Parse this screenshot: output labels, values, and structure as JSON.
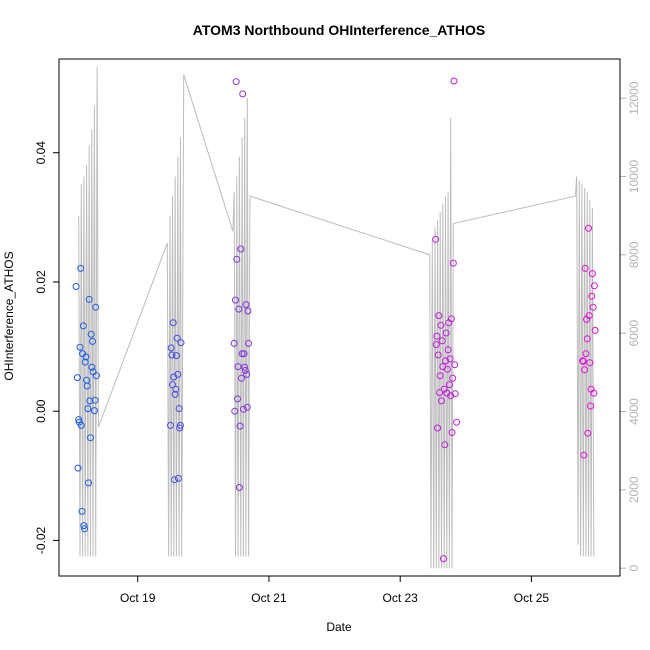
{
  "chart_data": {
    "type": "scatter",
    "title": "ATOM3 Northbound OHInterference_ATHOS",
    "xlabel": "Date",
    "ylabel": "OHInterference_ATHOS",
    "x_ticks": [
      "Oct 19",
      "Oct 21",
      "Oct 23",
      "Oct 25"
    ],
    "y_ticks": [
      "-0.02",
      "0.00",
      "0.02",
      "0.04"
    ],
    "y_tick_values": [
      -0.02,
      0.0,
      0.02,
      0.04
    ],
    "y2_ticks": [
      "0",
      "2000",
      "4000",
      "6000",
      "8000",
      "10000",
      "12000"
    ],
    "y2_tick_values": [
      0,
      2000,
      4000,
      6000,
      8000,
      10000,
      12000
    ],
    "xlim_days": [
      17.8,
      26.35
    ],
    "ylim": [
      -0.0255,
      0.0545
    ],
    "y2lim": [
      -200,
      13000
    ],
    "color_scale": {
      "start": "#1f5ce6",
      "end": "#e60fd9"
    },
    "secondary_series_color": "#bdbdbd",
    "series": [
      {
        "color_position": 0.0,
        "points": [
          {
            "x": 18.06,
            "y": 0.0193
          },
          {
            "x": 18.08,
            "y": 0.0052
          },
          {
            "x": 18.09,
            "y": -0.0088
          },
          {
            "x": 18.1,
            "y": -0.0013
          },
          {
            "x": 18.11,
            "y": -0.0017
          },
          {
            "x": 18.12,
            "y": 0.0099
          },
          {
            "x": 18.13,
            "y": 0.0221
          },
          {
            "x": 18.14,
            "y": -0.0022
          },
          {
            "x": 18.15,
            "y": -0.0155
          },
          {
            "x": 18.16,
            "y": 0.0089
          },
          {
            "x": 18.17,
            "y": 0.0132
          },
          {
            "x": 18.18,
            "y": -0.0177
          },
          {
            "x": 18.19,
            "y": -0.0182
          },
          {
            "x": 18.2,
            "y": 0.0076
          },
          {
            "x": 18.21,
            "y": 0.0084
          },
          {
            "x": 18.22,
            "y": 0.0048
          },
          {
            "x": 18.23,
            "y": 0.0039
          },
          {
            "x": 18.24,
            "y": 0.0004
          },
          {
            "x": 18.25,
            "y": -0.0111
          },
          {
            "x": 18.26,
            "y": 0.0173
          },
          {
            "x": 18.27,
            "y": 0.0016
          },
          {
            "x": 18.28,
            "y": -0.0041
          },
          {
            "x": 18.29,
            "y": 0.0119
          },
          {
            "x": 18.3,
            "y": 0.0068
          },
          {
            "x": 18.31,
            "y": 0.0108
          },
          {
            "x": 18.32,
            "y": 0.0061
          },
          {
            "x": 18.34,
            "y": 0.0001
          },
          {
            "x": 18.35,
            "y": 0.0017
          },
          {
            "x": 18.36,
            "y": 0.0161
          },
          {
            "x": 18.37,
            "y": 0.0055
          }
        ]
      },
      {
        "color_position": 0.2,
        "points": [
          {
            "x": 19.5,
            "y": -0.0022
          },
          {
            "x": 19.51,
            "y": 0.0098
          },
          {
            "x": 19.52,
            "y": 0.0087
          },
          {
            "x": 19.53,
            "y": 0.0041
          },
          {
            "x": 19.54,
            "y": 0.0137
          },
          {
            "x": 19.55,
            "y": 0.0053
          },
          {
            "x": 19.56,
            "y": -0.0106
          },
          {
            "x": 19.57,
            "y": 0.0026
          },
          {
            "x": 19.58,
            "y": 0.0034
          },
          {
            "x": 19.59,
            "y": 0.0086
          },
          {
            "x": 19.6,
            "y": 0.0113
          },
          {
            "x": 19.61,
            "y": 0.0057
          },
          {
            "x": 19.62,
            "y": -0.0104
          },
          {
            "x": 19.63,
            "y": 0.0004
          },
          {
            "x": 19.64,
            "y": -0.0026
          },
          {
            "x": 19.65,
            "y": -0.0022
          },
          {
            "x": 19.66,
            "y": 0.0106
          }
        ]
      },
      {
        "color_position": 0.5,
        "points": [
          {
            "x": 20.47,
            "y": 0.0105
          },
          {
            "x": 20.48,
            "y": 0.0
          },
          {
            "x": 20.49,
            "y": 0.0172
          },
          {
            "x": 20.5,
            "y": 0.051
          },
          {
            "x": 20.51,
            "y": 0.0235
          },
          {
            "x": 20.52,
            "y": 0.0019
          },
          {
            "x": 20.53,
            "y": 0.0069
          },
          {
            "x": 20.54,
            "y": 0.0158
          },
          {
            "x": 20.55,
            "y": -0.0118
          },
          {
            "x": 20.56,
            "y": -0.0023
          },
          {
            "x": 20.57,
            "y": 0.0251
          },
          {
            "x": 20.58,
            "y": 0.0051
          },
          {
            "x": 20.59,
            "y": 0.0089
          },
          {
            "x": 20.6,
            "y": 0.0491
          },
          {
            "x": 20.61,
            "y": 0.0003
          },
          {
            "x": 20.62,
            "y": 0.0089
          },
          {
            "x": 20.63,
            "y": 0.0068
          },
          {
            "x": 20.64,
            "y": 0.0063
          },
          {
            "x": 20.65,
            "y": 0.0165
          },
          {
            "x": 20.66,
            "y": 0.0057
          },
          {
            "x": 20.67,
            "y": 0.0006
          },
          {
            "x": 20.68,
            "y": 0.0155
          },
          {
            "x": 20.69,
            "y": 0.0105
          }
        ]
      },
      {
        "color_position": 0.82,
        "points": [
          {
            "x": 23.54,
            "y": 0.0266
          },
          {
            "x": 23.55,
            "y": 0.0103
          },
          {
            "x": 23.56,
            "y": 0.0116
          },
          {
            "x": 23.57,
            "y": -0.0026
          },
          {
            "x": 23.58,
            "y": 0.0087
          },
          {
            "x": 23.59,
            "y": 0.0148
          },
          {
            "x": 23.6,
            "y": 0.0029
          },
          {
            "x": 23.61,
            "y": 0.0055
          },
          {
            "x": 23.62,
            "y": 0.0133
          },
          {
            "x": 23.63,
            "y": 0.0016
          },
          {
            "x": 23.64,
            "y": 0.0109
          },
          {
            "x": 23.65,
            "y": 0.0069
          },
          {
            "x": 23.66,
            "y": -0.0228
          },
          {
            "x": 23.67,
            "y": 0.0034
          },
          {
            "x": 23.68,
            "y": -0.0052
          },
          {
            "x": 23.69,
            "y": 0.0078
          },
          {
            "x": 23.7,
            "y": 0.0121
          },
          {
            "x": 23.71,
            "y": 0.0028
          },
          {
            "x": 23.72,
            "y": 0.0065
          },
          {
            "x": 23.73,
            "y": 0.0095
          },
          {
            "x": 23.74,
            "y": 0.0137
          },
          {
            "x": 23.75,
            "y": 0.0041
          },
          {
            "x": 23.76,
            "y": 0.0081
          },
          {
            "x": 23.77,
            "y": 0.0024
          },
          {
            "x": 23.78,
            "y": 0.0143
          },
          {
            "x": 23.79,
            "y": -0.0033
          },
          {
            "x": 23.8,
            "y": 0.0051
          },
          {
            "x": 23.81,
            "y": 0.0229
          },
          {
            "x": 23.82,
            "y": 0.0511
          },
          {
            "x": 23.83,
            "y": 0.0072
          },
          {
            "x": 23.84,
            "y": 0.0027
          },
          {
            "x": 23.86,
            "y": -0.0017
          }
        ]
      },
      {
        "color_position": 1.0,
        "points": [
          {
            "x": 25.78,
            "y": 0.0078
          },
          {
            "x": 25.79,
            "y": 0.0077
          },
          {
            "x": 25.8,
            "y": -0.0068
          },
          {
            "x": 25.81,
            "y": 0.0064
          },
          {
            "x": 25.82,
            "y": 0.0221
          },
          {
            "x": 25.83,
            "y": 0.0089
          },
          {
            "x": 25.84,
            "y": 0.0142
          },
          {
            "x": 25.85,
            "y": 0.0112
          },
          {
            "x": 25.86,
            "y": -0.0034
          },
          {
            "x": 25.87,
            "y": 0.0283
          },
          {
            "x": 25.88,
            "y": 0.0148
          },
          {
            "x": 25.89,
            "y": 0.0075
          },
          {
            "x": 25.9,
            "y": 0.0008
          },
          {
            "x": 25.91,
            "y": 0.0034
          },
          {
            "x": 25.92,
            "y": 0.0178
          },
          {
            "x": 25.93,
            "y": 0.0213
          },
          {
            "x": 25.94,
            "y": 0.0161
          },
          {
            "x": 25.95,
            "y": 0.0028
          },
          {
            "x": 25.96,
            "y": 0.0194
          },
          {
            "x": 25.97,
            "y": 0.0125
          }
        ]
      }
    ],
    "secondary_series": {
      "axis": "right",
      "type": "line",
      "points": [
        {
          "x": 18.1,
          "y": 9000
        },
        {
          "x": 18.12,
          "y": 300
        },
        {
          "x": 18.14,
          "y": 9800
        },
        {
          "x": 18.16,
          "y": 300
        },
        {
          "x": 18.18,
          "y": 10000
        },
        {
          "x": 18.2,
          "y": 300
        },
        {
          "x": 18.22,
          "y": 10300
        },
        {
          "x": 18.24,
          "y": 300
        },
        {
          "x": 18.26,
          "y": 10800
        },
        {
          "x": 18.28,
          "y": 300
        },
        {
          "x": 18.3,
          "y": 11200
        },
        {
          "x": 18.32,
          "y": 300
        },
        {
          "x": 18.34,
          "y": 11800
        },
        {
          "x": 18.36,
          "y": 300
        },
        {
          "x": 18.38,
          "y": 12800
        },
        {
          "x": 18.4,
          "y": 3600
        },
        {
          "x": 19.45,
          "y": 8300
        },
        {
          "x": 19.47,
          "y": 300
        },
        {
          "x": 19.49,
          "y": 9000
        },
        {
          "x": 19.51,
          "y": 300
        },
        {
          "x": 19.53,
          "y": 9500
        },
        {
          "x": 19.55,
          "y": 300
        },
        {
          "x": 19.57,
          "y": 10000
        },
        {
          "x": 19.59,
          "y": 300
        },
        {
          "x": 19.61,
          "y": 10500
        },
        {
          "x": 19.63,
          "y": 300
        },
        {
          "x": 19.65,
          "y": 11000
        },
        {
          "x": 19.67,
          "y": 300
        },
        {
          "x": 19.7,
          "y": 12600
        },
        {
          "x": 20.45,
          "y": 8600
        },
        {
          "x": 20.47,
          "y": 9600
        },
        {
          "x": 20.49,
          "y": 300
        },
        {
          "x": 20.51,
          "y": 10000
        },
        {
          "x": 20.53,
          "y": 300
        },
        {
          "x": 20.55,
          "y": 10500
        },
        {
          "x": 20.57,
          "y": 300
        },
        {
          "x": 20.59,
          "y": 11000
        },
        {
          "x": 20.61,
          "y": 300
        },
        {
          "x": 20.63,
          "y": 11500
        },
        {
          "x": 20.65,
          "y": 300
        },
        {
          "x": 20.67,
          "y": 12000
        },
        {
          "x": 20.69,
          "y": 300
        },
        {
          "x": 20.71,
          "y": 9500
        },
        {
          "x": 23.45,
          "y": 8000
        },
        {
          "x": 23.47,
          "y": 0
        },
        {
          "x": 23.49,
          "y": 8400
        },
        {
          "x": 23.51,
          "y": 0
        },
        {
          "x": 23.53,
          "y": 8700
        },
        {
          "x": 23.55,
          "y": 0
        },
        {
          "x": 23.57,
          "y": 8900
        },
        {
          "x": 23.59,
          "y": 0
        },
        {
          "x": 23.61,
          "y": 9100
        },
        {
          "x": 23.63,
          "y": 0
        },
        {
          "x": 23.65,
          "y": 9300
        },
        {
          "x": 23.67,
          "y": 0
        },
        {
          "x": 23.69,
          "y": 9500
        },
        {
          "x": 23.71,
          "y": 0
        },
        {
          "x": 23.73,
          "y": 9600
        },
        {
          "x": 23.75,
          "y": 0
        },
        {
          "x": 23.77,
          "y": 11500
        },
        {
          "x": 23.79,
          "y": 0
        },
        {
          "x": 23.81,
          "y": 8800
        },
        {
          "x": 25.67,
          "y": 9500
        },
        {
          "x": 25.69,
          "y": 10000
        },
        {
          "x": 25.71,
          "y": 600
        },
        {
          "x": 25.73,
          "y": 9900
        },
        {
          "x": 25.75,
          "y": 300
        },
        {
          "x": 25.77,
          "y": 9800
        },
        {
          "x": 25.79,
          "y": 300
        },
        {
          "x": 25.81,
          "y": 9700
        },
        {
          "x": 25.83,
          "y": 300
        },
        {
          "x": 25.85,
          "y": 9600
        },
        {
          "x": 25.87,
          "y": 300
        },
        {
          "x": 25.89,
          "y": 9400
        },
        {
          "x": 25.91,
          "y": 300
        },
        {
          "x": 25.93,
          "y": 9200
        },
        {
          "x": 25.95,
          "y": 300
        }
      ]
    }
  }
}
